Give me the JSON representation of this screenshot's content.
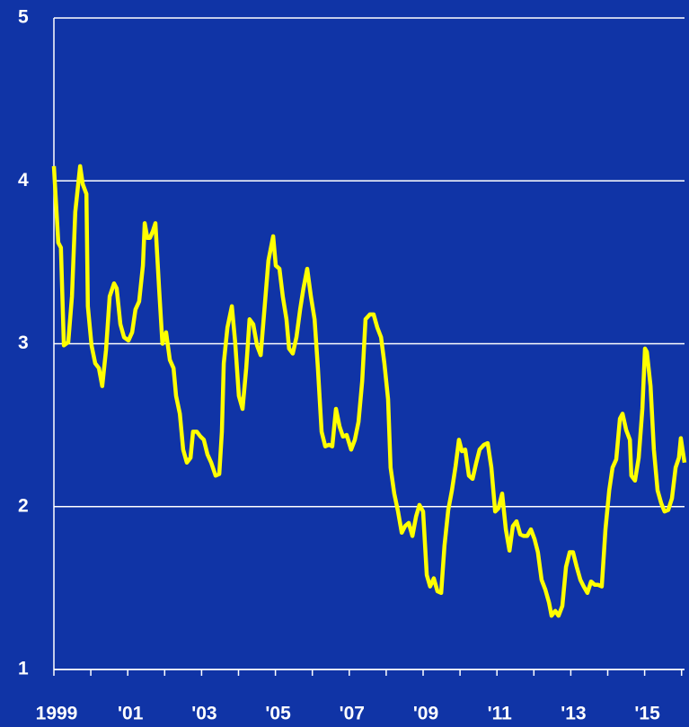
{
  "chart_data": {
    "type": "line",
    "color": "#ffff00",
    "background": "#1034a6",
    "grid": true,
    "xlim": [
      1999,
      2016.08
    ],
    "ylim": [
      1,
      5
    ],
    "yticks": [
      1,
      2,
      3,
      4,
      5
    ],
    "xticks": [
      {
        "value": 1999,
        "label": "1999"
      },
      {
        "value": 2001,
        "label": "'01"
      },
      {
        "value": 2003,
        "label": "'03"
      },
      {
        "value": 2005,
        "label": "'05"
      },
      {
        "value": 2007,
        "label": "'07"
      },
      {
        "value": 2009,
        "label": "'09"
      },
      {
        "value": 2011,
        "label": "'11"
      },
      {
        "value": 2013,
        "label": "'13"
      },
      {
        "value": 2015,
        "label": "'15"
      }
    ],
    "xminorticks": [
      2000,
      2002,
      2004,
      2006,
      2008,
      2010,
      2012,
      2014,
      2016
    ],
    "x": [
      1999.0,
      1999.12,
      1999.19,
      1999.27,
      1999.39,
      1999.49,
      1999.58,
      1999.71,
      1999.78,
      1999.88,
      1999.92,
      2000.02,
      2000.12,
      2000.22,
      2000.31,
      2000.41,
      2000.51,
      2000.63,
      2000.7,
      2000.8,
      2000.9,
      2001.02,
      2001.12,
      2001.21,
      2001.31,
      2001.41,
      2001.46,
      2001.53,
      2001.6,
      2001.68,
      2001.75,
      2001.85,
      2001.94,
      2002.04,
      2002.14,
      2002.24,
      2002.31,
      2002.41,
      2002.5,
      2002.6,
      2002.7,
      2002.77,
      2002.87,
      2002.97,
      2003.06,
      2003.16,
      2003.26,
      2003.38,
      2003.48,
      2003.55,
      2003.6,
      2003.7,
      2003.82,
      2003.91,
      2004.01,
      2004.11,
      2004.21,
      2004.3,
      2004.4,
      2004.5,
      2004.6,
      2004.72,
      2004.81,
      2004.94,
      2005.01,
      2005.11,
      2005.2,
      2005.3,
      2005.37,
      2005.47,
      2005.57,
      2005.67,
      2005.76,
      2005.86,
      2005.96,
      2006.06,
      2006.15,
      2006.25,
      2006.35,
      2006.45,
      2006.54,
      2006.64,
      2006.74,
      2006.83,
      2006.93,
      2007.05,
      2007.15,
      2007.25,
      2007.35,
      2007.44,
      2007.56,
      2007.66,
      2007.76,
      2007.86,
      2007.95,
      2008.05,
      2008.12,
      2008.22,
      2008.32,
      2008.42,
      2008.51,
      2008.61,
      2008.71,
      2008.81,
      2008.9,
      2009.0,
      2009.1,
      2009.19,
      2009.29,
      2009.39,
      2009.49,
      2009.58,
      2009.68,
      2009.78,
      2009.88,
      2009.97,
      2010.05,
      2010.14,
      2010.24,
      2010.34,
      2010.44,
      2010.53,
      2010.65,
      2010.75,
      2010.85,
      2010.95,
      2011.04,
      2011.14,
      2011.24,
      2011.34,
      2011.43,
      2011.53,
      2011.63,
      2011.72,
      2011.82,
      2011.92,
      2012.02,
      2012.11,
      2012.21,
      2012.31,
      2012.41,
      2012.48,
      2012.58,
      2012.67,
      2012.77,
      2012.87,
      2012.97,
      2013.06,
      2013.16,
      2013.26,
      2013.35,
      2013.45,
      2013.55,
      2013.65,
      2013.74,
      2013.84,
      2013.94,
      2014.04,
      2014.13,
      2014.23,
      2014.33,
      2014.4,
      2014.5,
      2014.6,
      2014.64,
      2014.74,
      2014.84,
      2014.94,
      2015.01,
      2015.06,
      2015.16,
      2015.25,
      2015.35,
      2015.45,
      2015.54,
      2015.64,
      2015.74,
      2015.84,
      2015.93,
      2015.98,
      2016.08
    ],
    "values": [
      4.09,
      3.62,
      3.59,
      2.99,
      3.01,
      3.29,
      3.81,
      4.09,
      3.98,
      3.92,
      3.23,
      2.99,
      2.88,
      2.85,
      2.74,
      2.96,
      3.29,
      3.37,
      3.34,
      3.12,
      3.04,
      3.02,
      3.07,
      3.21,
      3.26,
      3.48,
      3.74,
      3.65,
      3.65,
      3.69,
      3.74,
      3.34,
      3.0,
      3.07,
      2.9,
      2.85,
      2.68,
      2.57,
      2.35,
      2.27,
      2.3,
      2.46,
      2.46,
      2.43,
      2.41,
      2.32,
      2.27,
      2.19,
      2.2,
      2.46,
      2.88,
      3.1,
      3.23,
      3.01,
      2.68,
      2.6,
      2.85,
      3.15,
      3.12,
      2.99,
      2.93,
      3.26,
      3.51,
      3.66,
      3.48,
      3.46,
      3.29,
      3.15,
      2.97,
      2.94,
      3.04,
      3.21,
      3.34,
      3.46,
      3.29,
      3.15,
      2.85,
      2.46,
      2.37,
      2.38,
      2.37,
      2.6,
      2.49,
      2.43,
      2.44,
      2.35,
      2.41,
      2.52,
      2.77,
      3.15,
      3.18,
      3.18,
      3.1,
      3.04,
      2.88,
      2.66,
      2.24,
      2.08,
      1.97,
      1.84,
      1.88,
      1.9,
      1.82,
      1.94,
      2.01,
      1.97,
      1.58,
      1.51,
      1.56,
      1.48,
      1.47,
      1.76,
      1.98,
      2.1,
      2.25,
      2.41,
      2.34,
      2.35,
      2.19,
      2.17,
      2.27,
      2.35,
      2.38,
      2.39,
      2.24,
      1.97,
      1.99,
      2.08,
      1.86,
      1.73,
      1.88,
      1.91,
      1.83,
      1.82,
      1.82,
      1.86,
      1.8,
      1.72,
      1.55,
      1.49,
      1.41,
      1.33,
      1.36,
      1.33,
      1.39,
      1.63,
      1.72,
      1.72,
      1.63,
      1.55,
      1.51,
      1.47,
      1.54,
      1.52,
      1.52,
      1.51,
      1.86,
      2.1,
      2.24,
      2.29,
      2.54,
      2.57,
      2.47,
      2.41,
      2.19,
      2.16,
      2.3,
      2.6,
      2.97,
      2.95,
      2.74,
      2.35,
      2.1,
      2.02,
      1.97,
      1.98,
      2.05,
      2.24,
      2.3,
      2.42,
      2.27
    ]
  }
}
